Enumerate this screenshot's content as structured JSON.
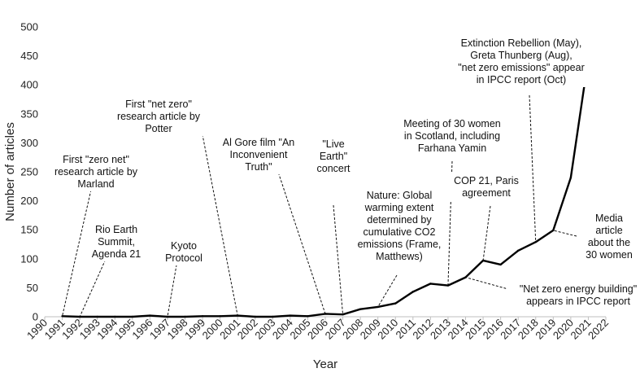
{
  "chart_data": {
    "type": "line",
    "xlabel": "Year",
    "ylabel": "Number of articles",
    "xlim": [
      1990,
      2022
    ],
    "ylim": [
      0,
      500
    ],
    "y_ticks": [
      0,
      50,
      100,
      150,
      200,
      250,
      300,
      350,
      400,
      450,
      500
    ],
    "x_ticks": [
      1990,
      1991,
      1992,
      1993,
      1994,
      1995,
      1996,
      1997,
      1998,
      1999,
      2000,
      2001,
      2002,
      2003,
      2004,
      2005,
      2006,
      2007,
      2008,
      2009,
      2010,
      2011,
      2012,
      2013,
      2014,
      2015,
      2016,
      2017,
      2018,
      2019,
      2020,
      2021,
      2022
    ],
    "grid": false,
    "series": [
      {
        "x": [
          1991,
          1992,
          1993,
          1994,
          1995,
          1996,
          1997,
          1998,
          1999,
          2000,
          2001,
          2002,
          2003,
          2004,
          2005,
          2006,
          2007,
          2008,
          2009,
          2010,
          2011,
          2012,
          2013,
          2014,
          2015,
          2016,
          2017,
          2018,
          2019,
          2020,
          2021
        ],
        "y": [
          1,
          0,
          0,
          0,
          0,
          2,
          0,
          0,
          1,
          1,
          2,
          0,
          0,
          2,
          1,
          5,
          4,
          13,
          17,
          23,
          43,
          57,
          54,
          68,
          97,
          90,
          114,
          129,
          149,
          240,
          445
        ],
        "color": "#000000"
      }
    ],
    "annotations": [
      {
        "lines": [
          "First \"zero net\"",
          "research article by",
          "Marland"
        ],
        "x": 1991,
        "y": 1
      },
      {
        "lines": [
          "Rio Earth",
          "Summit,",
          "Agenda 21"
        ],
        "x": 1992,
        "y": 0
      },
      {
        "lines": [
          "Kyoto",
          "Protocol"
        ],
        "x": 1997,
        "y": 0
      },
      {
        "lines": [
          "First \"net zero\"",
          "research article by",
          "Potter"
        ],
        "x": 2001,
        "y": 2
      },
      {
        "lines": [
          "Al Gore film \"An",
          "Inconvenient",
          "Truth\""
        ],
        "x": 2006,
        "y": 5
      },
      {
        "lines": [
          "\"Live",
          "Earth\"",
          "concert"
        ],
        "x": 2007,
        "y": 4
      },
      {
        "lines": [
          "Nature: Global",
          "warming extent",
          "determined by",
          "cumulative CO2",
          "emissions (Frame,",
          "Matthews)"
        ],
        "x": 2009,
        "y": 17
      },
      {
        "lines": [
          "Meeting of 30 women",
          "in Scotland, including",
          "Farhana Yamin"
        ],
        "x": 2013,
        "y": 54
      },
      {
        "lines": [
          "COP 21, Paris",
          "agreement"
        ],
        "x": 2015,
        "y": 97
      },
      {
        "lines": [
          "\"Net zero energy building\"",
          "appears in IPCC report"
        ],
        "x": 2014,
        "y": 68
      },
      {
        "lines": [
          "Extinction Rebellion (May),",
          "Greta Thunberg (Aug),",
          "\"net zero emissions\" appear",
          "in IPCC report (Oct)"
        ],
        "x": 2018,
        "y": 129
      },
      {
        "lines": [
          "Media",
          "article",
          "about the",
          "30 women"
        ],
        "x": 2019,
        "y": 149
      }
    ]
  }
}
